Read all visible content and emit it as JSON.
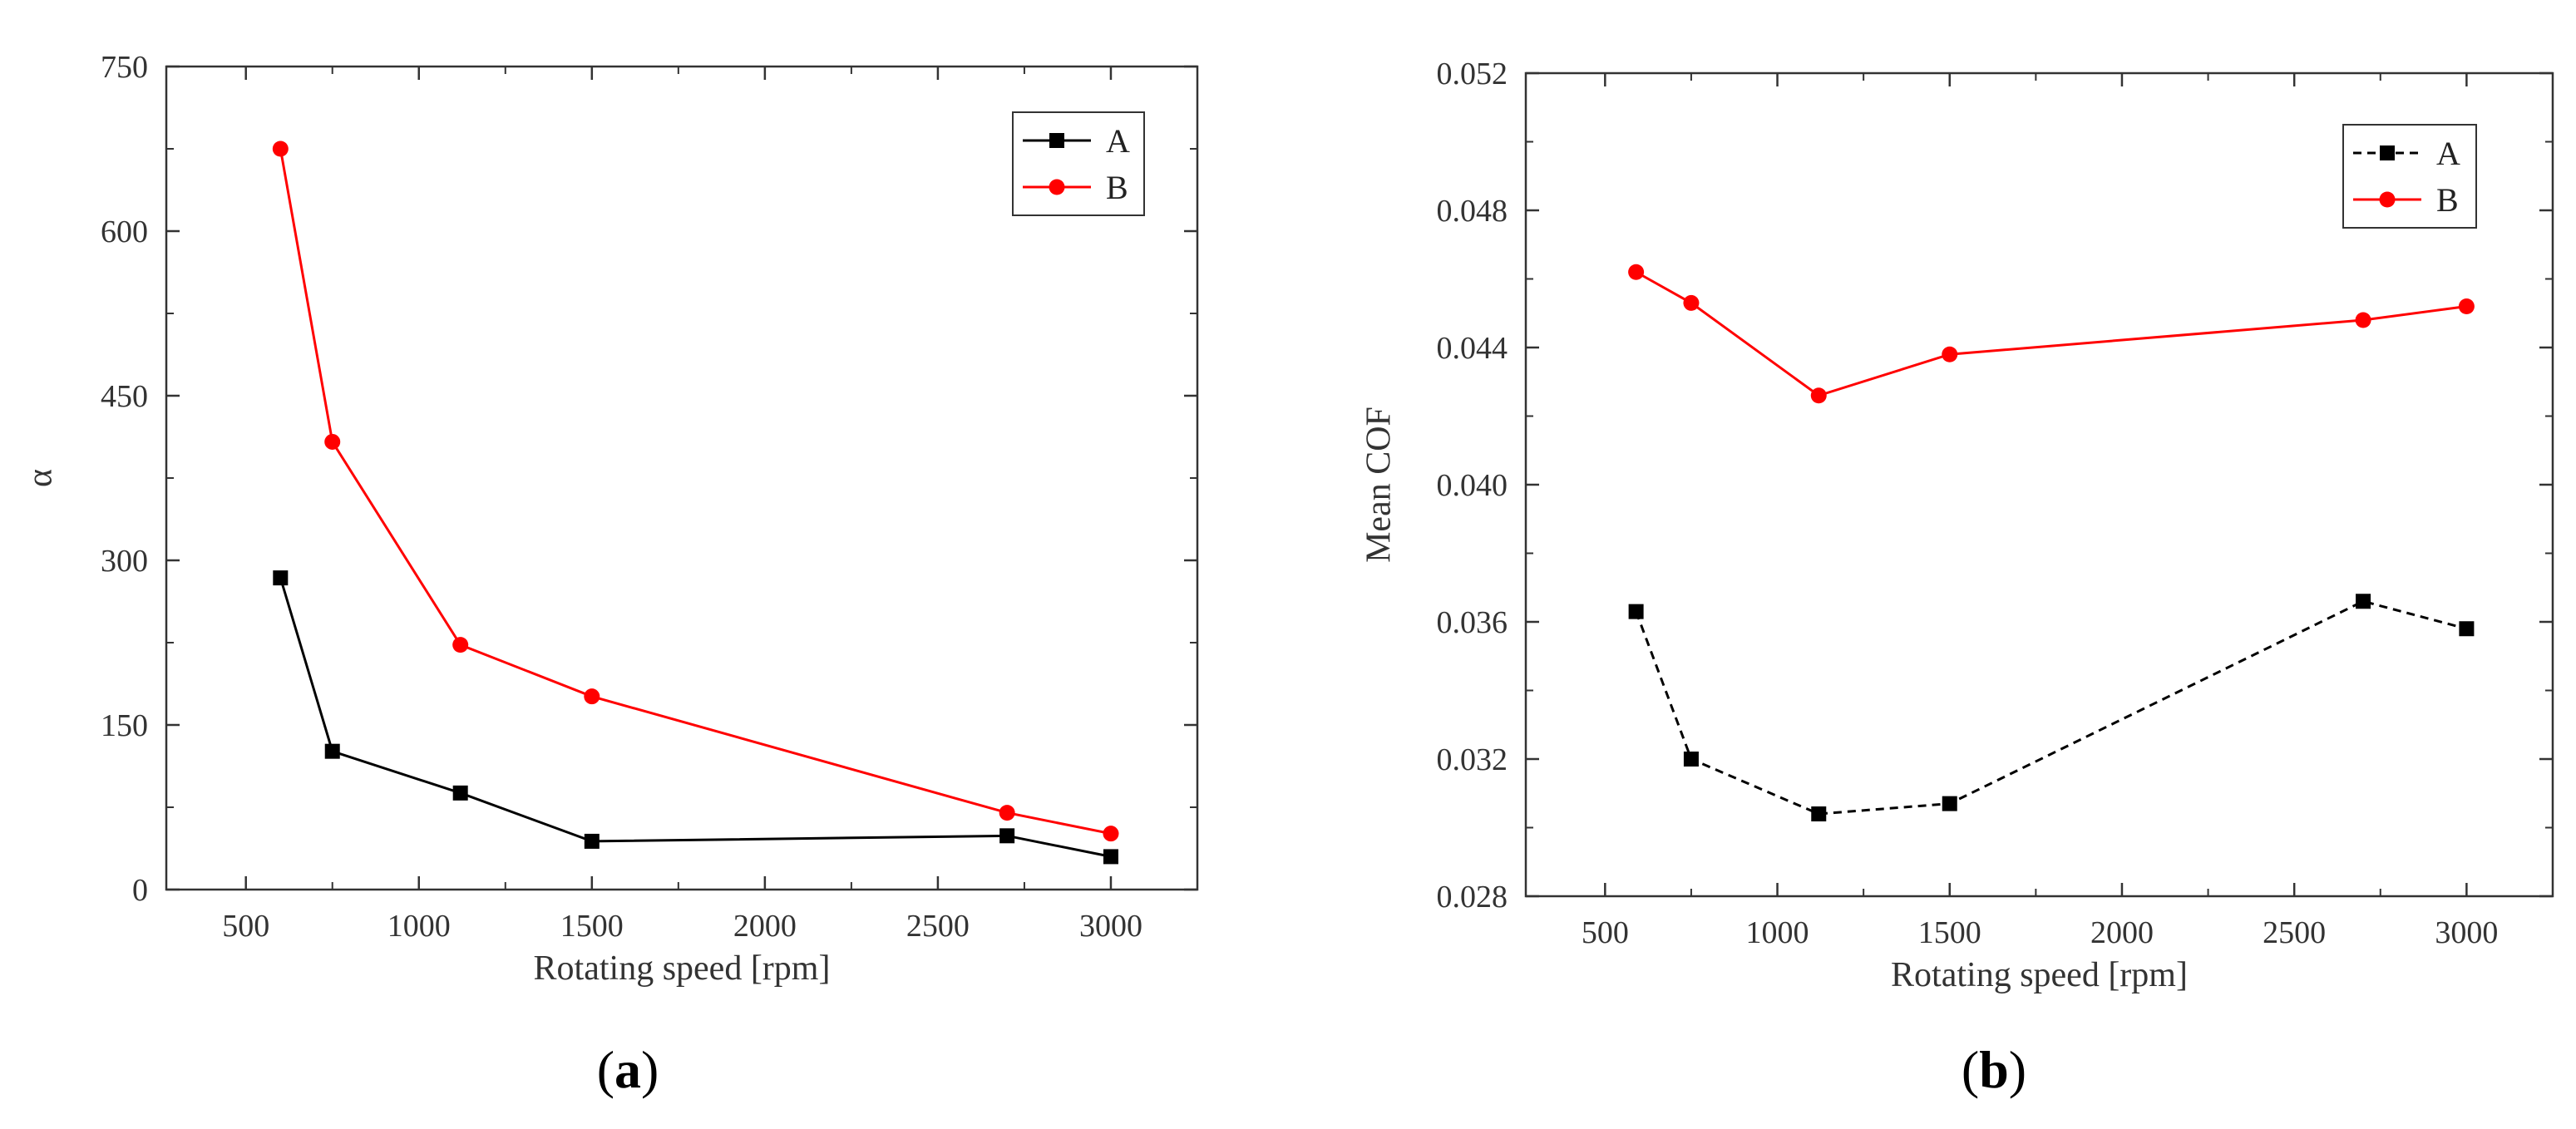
{
  "chart_data": [
    {
      "type": "line",
      "panel_label": "a",
      "title": "",
      "xlabel": "Rotating speed [rpm]",
      "ylabel": "α",
      "xlim": [
        270,
        3250
      ],
      "ylim": [
        0,
        750
      ],
      "xticks": [
        500,
        1000,
        1500,
        2000,
        2500,
        3000
      ],
      "xtick_labels": [
        "500",
        "1000",
        "1500",
        "2000",
        "2500",
        "3000"
      ],
      "yticks": [
        0,
        150,
        300,
        450,
        600,
        750
      ],
      "ytick_labels": [
        "0",
        "150",
        "300",
        "450",
        "600",
        "750"
      ],
      "grid": false,
      "legend_position": "top-right",
      "series": [
        {
          "name": "A",
          "color": "#000000",
          "marker": "square",
          "dash": "solid",
          "x": [
            600,
            750,
            1120,
            1500,
            2700,
            3000
          ],
          "y": [
            284,
            126,
            88,
            44,
            49,
            30
          ]
        },
        {
          "name": "B",
          "color": "#ff0000",
          "marker": "circle",
          "dash": "solid",
          "x": [
            600,
            750,
            1120,
            1500,
            2700,
            3000
          ],
          "y": [
            675,
            408,
            223,
            176,
            70,
            51
          ]
        }
      ]
    },
    {
      "type": "line",
      "panel_label": "b",
      "title": "",
      "xlabel": "Rotating speed [rpm]",
      "ylabel": "Mean COF",
      "xlim": [
        270,
        3250
      ],
      "ylim": [
        0.028,
        0.052
      ],
      "xticks": [
        500,
        1000,
        1500,
        2000,
        2500,
        3000
      ],
      "xtick_labels": [
        "500",
        "1000",
        "1500",
        "2000",
        "2500",
        "3000"
      ],
      "yticks": [
        0.028,
        0.032,
        0.036,
        0.04,
        0.044,
        0.048,
        0.052
      ],
      "ytick_labels": [
        "0.028",
        "0.032",
        "0.036",
        "0.040",
        "0.044",
        "0.048",
        "0.052"
      ],
      "grid": false,
      "legend_position": "top-right",
      "series": [
        {
          "name": "A",
          "color": "#000000",
          "marker": "square",
          "dash": "dashed",
          "x": [
            590,
            750,
            1120,
            1500,
            2700,
            3000
          ],
          "y": [
            0.0363,
            0.032,
            0.0304,
            0.0307,
            0.0366,
            0.0358
          ]
        },
        {
          "name": "B",
          "color": "#ff0000",
          "marker": "circle",
          "dash": "solid",
          "x": [
            590,
            750,
            1120,
            1500,
            2700,
            3000
          ],
          "y": [
            0.0462,
            0.0453,
            0.0426,
            0.0438,
            0.0448,
            0.0452
          ]
        }
      ]
    }
  ]
}
